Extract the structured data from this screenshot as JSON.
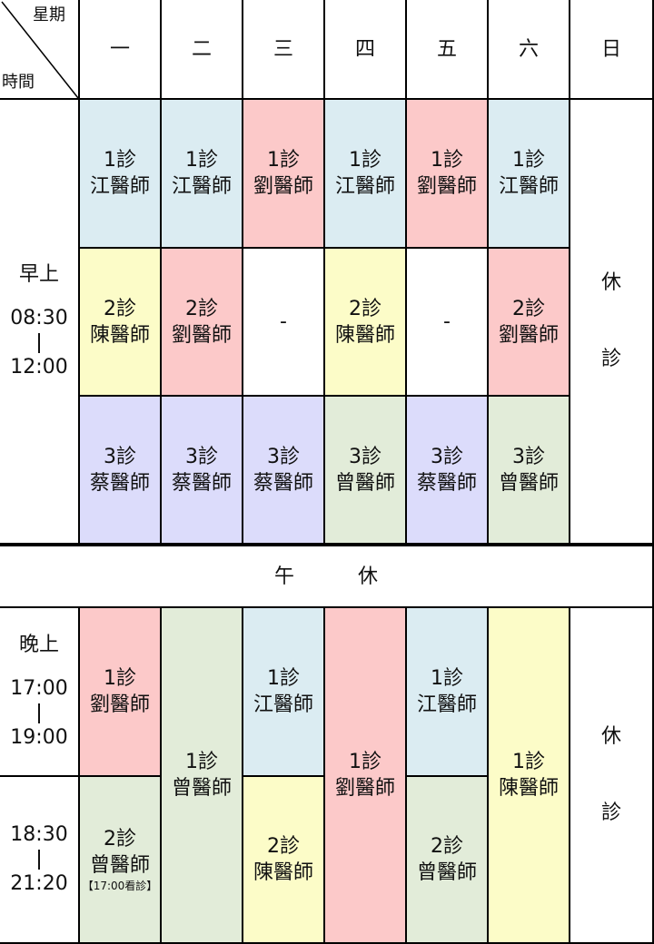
{
  "corner": {
    "top": "星期",
    "bottom": "時間"
  },
  "days": [
    "一",
    "二",
    "三",
    "四",
    "五",
    "六",
    "日"
  ],
  "morning": {
    "label": "早上",
    "start": "08:30",
    "end": "12:00",
    "row1": [
      {
        "room": "1診",
        "doctor": "江醫師"
      },
      {
        "room": "1診",
        "doctor": "江醫師"
      },
      {
        "room": "1診",
        "doctor": "劉醫師"
      },
      {
        "room": "1診",
        "doctor": "江醫師"
      },
      {
        "room": "1診",
        "doctor": "劉醫師"
      },
      {
        "room": "1診",
        "doctor": "江醫師"
      }
    ],
    "row2": [
      {
        "room": "2診",
        "doctor": "陳醫師"
      },
      {
        "room": "2診",
        "doctor": "劉醫師"
      },
      {
        "dash": "-"
      },
      {
        "room": "2診",
        "doctor": "陳醫師"
      },
      {
        "dash": "-"
      },
      {
        "room": "2診",
        "doctor": "劉醫師"
      }
    ],
    "row3": [
      {
        "room": "3診",
        "doctor": "蔡醫師"
      },
      {
        "room": "3診",
        "doctor": "蔡醫師"
      },
      {
        "room": "3診",
        "doctor": "蔡醫師"
      },
      {
        "room": "3診",
        "doctor": "曾醫師"
      },
      {
        "room": "3診",
        "doctor": "蔡醫師"
      },
      {
        "room": "3診",
        "doctor": "曾醫師"
      }
    ],
    "sunday": [
      "休",
      "診"
    ]
  },
  "lunch": [
    "午",
    "休"
  ],
  "evening": {
    "label": "晚上",
    "slot1_start": "17:00",
    "slot1_end": "19:00",
    "slot2_start": "18:30",
    "slot2_end": "21:20",
    "mon1": {
      "room": "1診",
      "doctor": "劉醫師"
    },
    "mon2": {
      "room": "2診",
      "doctor": "曾醫師",
      "note": "【17:00看診】"
    },
    "tue": {
      "room": "1診",
      "doctor": "曾醫師"
    },
    "wed1": {
      "room": "1診",
      "doctor": "江醫師"
    },
    "wed2": {
      "room": "2診",
      "doctor": "陳醫師"
    },
    "thu": {
      "room": "1診",
      "doctor": "劉醫師"
    },
    "fri1": {
      "room": "1診",
      "doctor": "江醫師"
    },
    "fri2": {
      "room": "2診",
      "doctor": "曾醫師"
    },
    "sat": {
      "room": "1診",
      "doctor": "陳醫師"
    },
    "sunday": [
      "休",
      "診"
    ]
  },
  "colors": {
    "blue": "#dbecf2",
    "pink": "#fcc9c9",
    "yellow": "#fcfcc8",
    "green": "#e2ecd9",
    "lavender": "#dcdcfb",
    "grid": "#000000"
  }
}
